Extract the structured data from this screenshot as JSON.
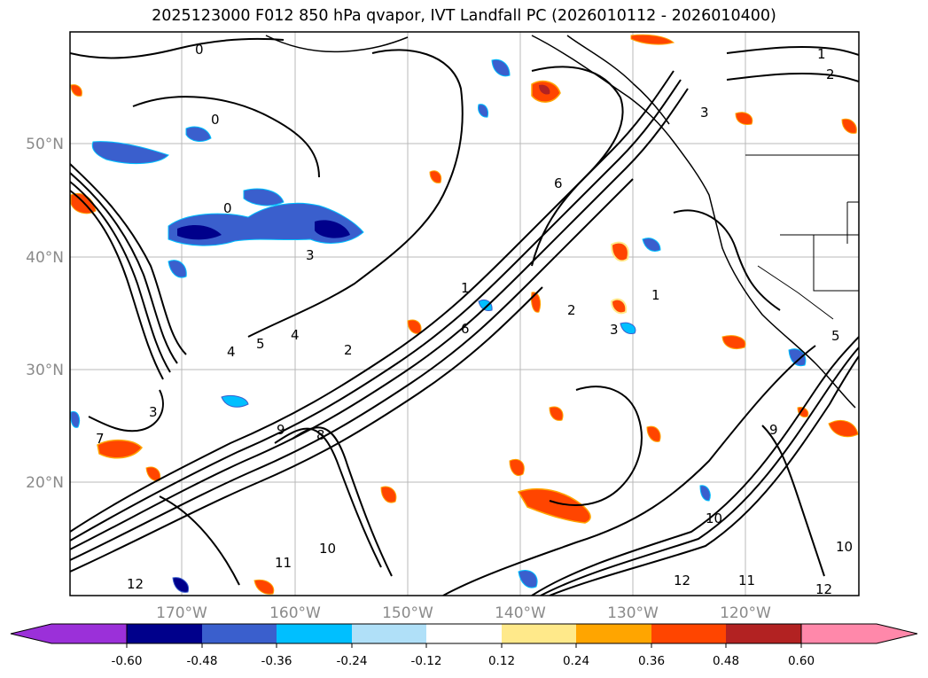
{
  "title": "2025123000 F012 850 hPa qvapor, IVT Landfall PC (2026010112 - 2026010400)",
  "map": {
    "lat_labels": [
      "50°N",
      "40°N",
      "30°N",
      "20°N"
    ],
    "lon_labels": [
      "170°W",
      "160°W",
      "150°W",
      "140°W",
      "130°W",
      "120°W"
    ],
    "contour_labels": [
      "1",
      "2",
      "3",
      "0",
      "0",
      "0",
      "3",
      "4",
      "5",
      "6",
      "1",
      "2",
      "3",
      "8",
      "9",
      "10",
      "11",
      "12",
      "10",
      "12",
      "7",
      "9",
      "11",
      "12",
      "10",
      "2",
      "3",
      "1",
      "6",
      "5",
      "4"
    ]
  },
  "colorbar": {
    "ticks": [
      "-0.60",
      "-0.48",
      "-0.36",
      "-0.24",
      "-0.12",
      "0.12",
      "0.24",
      "0.36",
      "0.48",
      "0.60"
    ],
    "colors": [
      "#9b30d9",
      "#00008b",
      "#3a5fcd",
      "#00bfff",
      "#b0e0f8",
      "#ffffff",
      "#ffe98a",
      "#ffa500",
      "#ff4500",
      "#b22222",
      "#ff88aa"
    ]
  }
}
